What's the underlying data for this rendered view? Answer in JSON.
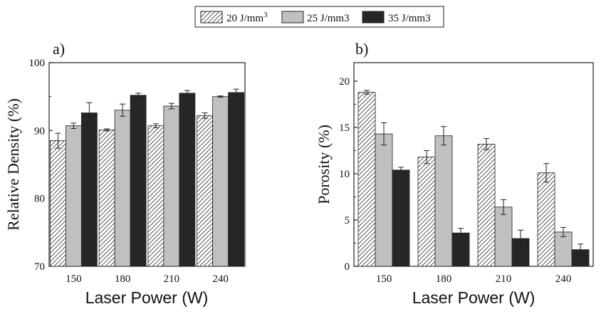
{
  "legend": {
    "entries": [
      {
        "label": "20 J/mm",
        "sup": "3",
        "pattern": "hatch",
        "color": "#ffffff"
      },
      {
        "label": "25 J/mm3",
        "sup": "",
        "pattern": "solid",
        "color": "#c0c0c0"
      },
      {
        "label": "35 J/mm3",
        "sup": "",
        "pattern": "solid",
        "color": "#262626"
      }
    ]
  },
  "chart_data": [
    {
      "type": "bar",
      "panel_label": "a)",
      "categories": [
        "150",
        "180",
        "210",
        "240"
      ],
      "series": [
        {
          "name": "20 J/mm3",
          "values": [
            88.5,
            90.1,
            90.7,
            92.2
          ],
          "errors": [
            1.1,
            0.15,
            0.3,
            0.4
          ]
        },
        {
          "name": "25 J/mm3",
          "values": [
            90.7,
            93.0,
            93.6,
            95.0
          ],
          "errors": [
            0.4,
            0.9,
            0.4,
            0.1
          ]
        },
        {
          "name": "35 J/mm3",
          "values": [
            92.6,
            95.2,
            95.5,
            95.6
          ],
          "errors": [
            1.5,
            0.3,
            0.4,
            0.5
          ]
        }
      ],
      "xlabel": "Laser Power (W)",
      "ylabel": "Relative Density (%)",
      "ylim": [
        70,
        100
      ],
      "yticks": [
        70,
        80,
        90,
        100
      ],
      "grid": false
    },
    {
      "type": "bar",
      "panel_label": "b)",
      "categories": [
        "150",
        "180",
        "210",
        "240"
      ],
      "series": [
        {
          "name": "20 J/mm3",
          "values": [
            18.8,
            11.8,
            13.2,
            10.1
          ],
          "errors": [
            0.2,
            0.7,
            0.6,
            1.0
          ]
        },
        {
          "name": "25 J/mm3",
          "values": [
            14.3,
            14.1,
            6.4,
            3.7
          ],
          "errors": [
            1.2,
            1.0,
            0.8,
            0.5
          ]
        },
        {
          "name": "35 J/mm3",
          "values": [
            10.4,
            3.6,
            3.0,
            1.8
          ],
          "errors": [
            0.3,
            0.5,
            0.9,
            0.6
          ]
        }
      ],
      "xlabel": "Laser Power (W)",
      "ylabel": "Porosity (%)",
      "ylim": [
        0,
        22
      ],
      "yticks": [
        0,
        5,
        10,
        15,
        20
      ],
      "grid": false
    }
  ]
}
